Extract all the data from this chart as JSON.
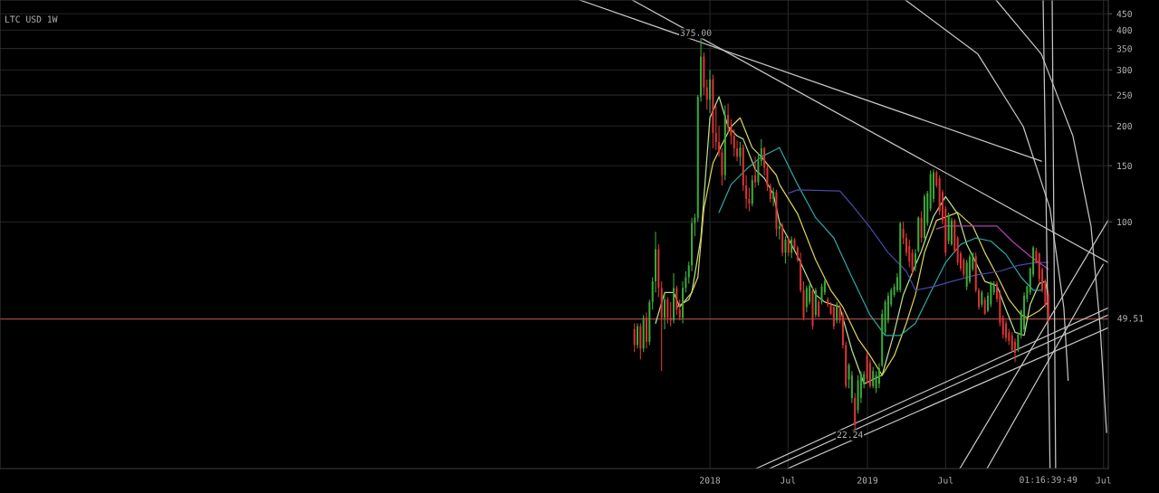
{
  "chart_data": {
    "type": "candlestick",
    "title": "LTC USD 1W",
    "log": true,
    "grid": true,
    "xlim": [
      "2013-07-01",
      "2020-07-12"
    ],
    "ylim": [
      16.8,
      497
    ],
    "xticks": [
      {
        "value": "2018-01-01",
        "label": "2018"
      },
      {
        "value": "2018-07-01",
        "label": "Jul"
      },
      {
        "value": "2019-01-01",
        "label": "2019"
      },
      {
        "value": "2019-07-01",
        "label": "Jul"
      },
      {
        "value": "2020-07-01",
        "label": "Jul"
      }
    ],
    "yticks": [
      100,
      150,
      200,
      250,
      300,
      350,
      400,
      450
    ],
    "x": [
      "2017-07-10",
      "2017-07-17",
      "2017-07-24",
      "2017-07-31",
      "2017-08-07",
      "2017-08-14",
      "2017-08-21",
      "2017-08-28",
      "2017-09-04",
      "2017-09-11",
      "2017-09-18",
      "2017-09-25",
      "2017-10-02",
      "2017-10-09",
      "2017-10-16",
      "2017-10-23",
      "2017-10-30",
      "2017-11-06",
      "2017-11-13",
      "2017-11-20",
      "2017-11-27",
      "2017-12-04",
      "2017-12-11",
      "2017-12-18",
      "2017-12-25",
      "2018-01-01",
      "2018-01-08",
      "2018-01-15",
      "2018-01-22",
      "2018-01-29",
      "2018-02-05",
      "2018-02-12",
      "2018-02-19",
      "2018-02-26",
      "2018-03-05",
      "2018-03-12",
      "2018-03-19",
      "2018-03-26",
      "2018-04-02",
      "2018-04-09",
      "2018-04-16",
      "2018-04-23",
      "2018-04-30",
      "2018-05-07",
      "2018-05-14",
      "2018-05-21",
      "2018-05-28",
      "2018-06-04",
      "2018-06-11",
      "2018-06-18",
      "2018-06-25",
      "2018-07-02",
      "2018-07-09",
      "2018-07-16",
      "2018-07-23",
      "2018-07-30",
      "2018-08-06",
      "2018-08-13",
      "2018-08-20",
      "2018-08-27",
      "2018-09-03",
      "2018-09-10",
      "2018-09-17",
      "2018-09-24",
      "2018-10-01",
      "2018-10-08",
      "2018-10-15",
      "2018-10-22",
      "2018-10-29",
      "2018-11-05",
      "2018-11-12",
      "2018-11-19",
      "2018-11-26",
      "2018-12-03",
      "2018-12-10",
      "2018-12-17",
      "2018-12-24",
      "2018-12-31",
      "2019-01-07",
      "2019-01-14",
      "2019-01-21",
      "2019-01-28",
      "2019-02-04",
      "2019-02-11",
      "2019-02-18",
      "2019-02-25",
      "2019-03-04",
      "2019-03-11",
      "2019-03-18",
      "2019-03-25",
      "2019-04-01",
      "2019-04-08",
      "2019-04-15",
      "2019-04-22",
      "2019-04-29",
      "2019-05-06",
      "2019-05-13",
      "2019-05-20",
      "2019-05-27",
      "2019-06-03",
      "2019-06-10",
      "2019-06-17",
      "2019-06-24",
      "2019-07-01",
      "2019-07-08",
      "2019-07-15",
      "2019-07-22",
      "2019-07-29",
      "2019-08-05",
      "2019-08-12",
      "2019-08-19",
      "2019-08-26",
      "2019-09-02",
      "2019-09-09",
      "2019-09-16",
      "2019-09-23",
      "2019-09-30",
      "2019-10-07",
      "2019-10-14",
      "2019-10-21",
      "2019-10-28",
      "2019-11-04",
      "2019-11-11",
      "2019-11-18",
      "2019-11-25",
      "2019-12-02",
      "2019-12-09",
      "2019-12-16",
      "2019-12-23",
      "2019-12-30",
      "2020-01-06",
      "2020-01-13",
      "2020-01-20",
      "2020-01-27",
      "2020-02-03",
      "2020-02-10",
      "2020-02-17",
      "2020-02-24"
    ],
    "ohlc": [
      [
        46,
        48,
        39,
        41
      ],
      [
        41,
        48,
        40,
        47
      ],
      [
        47,
        48,
        37,
        40
      ],
      [
        40,
        51,
        39,
        50
      ],
      [
        50,
        52,
        40,
        42
      ],
      [
        42,
        57,
        41,
        56
      ],
      [
        56,
        67,
        53,
        65
      ],
      [
        65,
        93,
        60,
        82
      ],
      [
        82,
        85,
        58,
        62
      ],
      [
        62,
        65,
        34,
        50
      ],
      [
        50,
        60,
        46,
        57
      ],
      [
        57,
        58,
        48,
        50
      ],
      [
        50,
        56,
        47,
        49
      ],
      [
        49,
        69,
        48,
        62
      ],
      [
        62,
        63,
        51,
        53
      ],
      [
        53,
        57,
        49,
        50
      ],
      [
        50,
        65,
        48,
        62
      ],
      [
        62,
        70,
        60,
        67
      ],
      [
        67,
        75,
        64,
        73
      ],
      [
        73,
        103,
        70,
        99
      ],
      [
        99,
        106,
        90,
        103
      ],
      [
        103,
        250,
        100,
        247
      ],
      [
        247,
        375,
        238,
        330
      ],
      [
        330,
        340,
        250,
        264
      ],
      [
        264,
        280,
        225,
        242
      ],
      [
        242,
        300,
        220,
        280
      ],
      [
        280,
        290,
        170,
        190
      ],
      [
        190,
        232,
        168,
        178
      ],
      [
        178,
        200,
        160,
        165
      ],
      [
        165,
        170,
        130,
        140
      ],
      [
        140,
        232,
        135,
        217
      ],
      [
        217,
        235,
        190,
        199
      ],
      [
        199,
        210,
        175,
        186
      ],
      [
        186,
        195,
        160,
        170
      ],
      [
        170,
        180,
        155,
        160
      ],
      [
        160,
        178,
        150,
        171
      ],
      [
        171,
        175,
        125,
        130
      ],
      [
        130,
        140,
        110,
        118
      ],
      [
        118,
        128,
        108,
        114
      ],
      [
        114,
        140,
        112,
        135
      ],
      [
        140,
        160,
        128,
        133
      ],
      [
        133,
        165,
        130,
        155
      ],
      [
        155,
        182,
        150,
        170
      ],
      [
        170,
        172,
        140,
        148
      ],
      [
        148,
        150,
        125,
        130
      ],
      [
        130,
        132,
        115,
        118
      ],
      [
        118,
        128,
        112,
        124
      ],
      [
        124,
        126,
        90,
        95
      ],
      [
        95,
        100,
        88,
        97
      ],
      [
        97,
        99,
        78,
        80
      ],
      [
        80,
        90,
        74,
        88
      ],
      [
        88,
        90,
        78,
        80
      ],
      [
        80,
        90,
        77,
        88
      ],
      [
        88,
        89,
        82,
        83
      ],
      [
        83,
        84,
        75,
        76
      ],
      [
        76,
        80,
        60,
        61
      ],
      [
        61,
        65,
        49,
        50
      ],
      [
        54,
        63,
        52,
        62
      ],
      [
        56,
        64,
        55,
        63
      ],
      [
        61,
        62,
        46,
        47
      ],
      [
        51,
        62,
        50,
        61
      ],
      [
        56,
        57,
        50,
        50.5
      ],
      [
        56,
        64,
        55,
        62.6
      ],
      [
        60,
        66,
        59,
        65
      ],
      [
        57,
        58,
        54,
        55
      ],
      [
        55,
        56,
        51,
        51.5
      ],
      [
        54,
        55,
        46,
        47
      ],
      [
        49,
        56,
        48,
        55
      ],
      [
        54,
        55,
        48,
        49
      ],
      [
        51,
        52,
        40,
        41
      ],
      [
        41,
        42,
        30,
        30.5
      ],
      [
        32,
        36,
        30,
        35.5
      ],
      [
        28,
        34,
        27,
        33
      ],
      [
        28,
        29,
        22.24,
        23
      ],
      [
        25.6,
        33,
        25,
        31.8
      ],
      [
        28,
        34,
        27,
        33.3
      ],
      [
        31,
        34,
        30,
        33.3
      ],
      [
        38,
        39,
        31,
        32
      ],
      [
        36,
        37,
        30,
        30.5
      ],
      [
        30.5,
        35,
        30,
        34
      ],
      [
        30,
        34,
        29,
        33
      ],
      [
        31,
        36,
        30,
        34.7
      ],
      [
        35.5,
        53,
        35,
        51.4
      ],
      [
        45,
        57,
        44,
        56
      ],
      [
        49,
        60,
        48,
        58.6
      ],
      [
        55,
        62,
        54,
        61
      ],
      [
        59,
        64,
        58,
        62.6
      ],
      [
        61,
        69,
        60,
        67
      ],
      [
        61,
        100,
        60,
        99
      ],
      [
        95,
        100,
        85,
        89
      ],
      [
        89,
        92,
        78,
        80
      ],
      [
        84,
        88,
        72,
        75
      ],
      [
        80,
        82,
        68,
        70
      ],
      [
        72,
        82,
        70,
        79.6
      ],
      [
        81,
        104,
        80,
        103
      ],
      [
        103,
        108,
        86,
        89
      ],
      [
        89,
        122,
        88,
        120
      ],
      [
        99,
        125,
        97,
        123
      ],
      [
        110,
        145,
        108,
        141
      ],
      [
        118,
        146,
        115,
        143
      ],
      [
        143,
        145,
        128,
        130
      ],
      [
        137,
        140,
        105,
        108
      ],
      [
        124,
        126,
        98,
        101
      ],
      [
        110,
        112,
        78,
        80
      ],
      [
        87,
        107,
        85,
        105
      ],
      [
        85,
        103,
        84,
        101
      ],
      [
        101,
        102,
        80,
        81
      ],
      [
        89,
        90,
        73,
        74.5
      ],
      [
        79.6,
        81,
        70,
        71.3
      ],
      [
        76,
        77,
        67,
        68.3
      ],
      [
        62.6,
        76,
        61,
        74.5
      ],
      [
        65,
        79,
        64,
        77.8
      ],
      [
        71,
        80,
        70,
        79.6
      ],
      [
        78,
        80,
        60,
        61
      ],
      [
        61,
        62,
        53,
        54
      ],
      [
        55,
        61,
        54,
        60
      ],
      [
        57,
        58,
        51,
        51.5
      ],
      [
        52.6,
        60,
        52,
        58.6
      ],
      [
        55,
        65,
        54,
        64
      ],
      [
        60,
        65,
        59,
        64
      ],
      [
        64,
        65,
        56,
        57.3
      ],
      [
        60,
        61,
        47,
        48.2
      ],
      [
        50,
        51,
        43,
        44.2
      ],
      [
        48,
        49,
        42,
        43.2
      ],
      [
        45,
        46,
        41,
        42.3
      ],
      [
        44,
        45,
        39,
        39.6
      ],
      [
        42,
        43,
        36.3,
        38.8
      ],
      [
        39.6,
        45,
        39,
        44.2
      ],
      [
        44,
        53,
        43,
        52.6
      ],
      [
        46,
        60,
        45,
        58.6
      ],
      [
        57.3,
        63,
        56,
        62.6
      ],
      [
        60,
        72,
        59,
        71.3
      ],
      [
        68.3,
        84,
        67,
        83
      ],
      [
        81,
        83,
        74,
        74.5
      ],
      [
        79.6,
        80,
        64,
        66
      ],
      [
        71,
        72,
        60,
        61
      ],
      [
        65,
        66,
        54,
        55
      ],
      [
        59,
        61,
        48,
        49.51
      ]
    ],
    "series": [
      {
        "type": "line",
        "color": "#b9e08c",
        "x": [
          "2017-08-28",
          "2017-09-18",
          "2017-10-09",
          "2017-10-23",
          "2017-11-20",
          "2017-12-11",
          "2018-01-01",
          "2018-01-22",
          "2018-02-12",
          "2018-03-05",
          "2018-03-19",
          "2018-04-16",
          "2018-05-07",
          "2018-05-28",
          "2018-06-11",
          "2018-07-23",
          "2018-09-03",
          "2018-09-24",
          "2018-10-29",
          "2018-11-26",
          "2018-12-24",
          "2019-01-14",
          "2019-02-04",
          "2019-03-04",
          "2019-03-25",
          "2019-04-22",
          "2019-05-06",
          "2019-06-03",
          "2019-07-01",
          "2019-07-29",
          "2019-08-19",
          "2019-09-09",
          "2019-09-30",
          "2019-10-28",
          "2019-11-18",
          "2019-12-09",
          "2019-12-30",
          "2020-01-13",
          "2020-02-03",
          "2020-02-17",
          "2020-02-24"
        ],
        "values": [
          48,
          60,
          60,
          54,
          60,
          89,
          212,
          247,
          199,
          186,
          182,
          146,
          137,
          122,
          100,
          78,
          59,
          56,
          54,
          39.5,
          31,
          32,
          33,
          45,
          59,
          73,
          81,
          104,
          120,
          106,
          85,
          74.5,
          65,
          63,
          53,
          45,
          44,
          55,
          64,
          65,
          59
        ]
      },
      {
        "type": "line",
        "color": "#d8cf5a",
        "x": [
          "2017-10-16",
          "2017-11-13",
          "2017-12-04",
          "2017-12-18",
          "2018-01-08",
          "2018-01-29",
          "2018-02-19",
          "2018-03-12",
          "2018-04-09",
          "2018-04-30",
          "2018-06-04",
          "2018-06-11",
          "2018-07-23",
          "2018-09-03",
          "2018-10-08",
          "2018-11-05",
          "2018-12-10",
          "2019-01-07",
          "2019-02-04",
          "2019-03-04",
          "2019-04-01",
          "2019-04-22",
          "2019-05-13",
          "2019-06-10",
          "2019-07-29",
          "2019-09-02",
          "2019-09-30",
          "2019-10-28",
          "2019-11-25",
          "2019-12-23",
          "2020-01-06",
          "2020-02-03",
          "2020-02-24"
        ],
        "values": [
          54,
          57,
          67,
          110,
          153,
          175,
          199,
          212,
          171,
          160,
          140,
          131,
          106,
          76,
          61,
          54,
          43,
          38,
          33,
          38,
          48,
          59,
          80,
          101,
          107,
          97,
          80,
          68,
          57,
          51,
          50,
          52.6,
          56
        ]
      },
      {
        "type": "line",
        "color": "#2fa3a3",
        "x": [
          "2018-01-22",
          "2018-02-19",
          "2018-03-26",
          "2018-04-30",
          "2018-06-04",
          "2018-06-11",
          "2018-07-23",
          "2018-09-03",
          "2018-10-15",
          "2018-11-26",
          "2019-01-07",
          "2019-02-11",
          "2019-03-18",
          "2019-04-22",
          "2019-05-27",
          "2019-07-01",
          "2019-08-05",
          "2019-09-09",
          "2019-10-14",
          "2019-11-18",
          "2019-12-23",
          "2020-01-20",
          "2020-02-10"
        ],
        "values": [
          107,
          131,
          146,
          160,
          169,
          171,
          131,
          103,
          89,
          67,
          51,
          44,
          44,
          48,
          60,
          74.5,
          85,
          89,
          87,
          79,
          67,
          61,
          61
        ]
      },
      {
        "type": "line",
        "color": "#4848a8",
        "x": [
          "2018-07-02",
          "2018-07-23",
          "2018-10-29",
          "2018-11-26",
          "2019-01-07",
          "2019-02-18",
          "2019-04-01",
          "2019-04-22",
          "2019-06-03",
          "2019-07-15",
          "2019-09-09",
          "2019-11-04",
          "2019-12-16",
          "2020-01-27",
          "2020-02-24"
        ],
        "values": [
          123,
          126,
          125,
          113,
          96,
          80,
          70,
          61,
          62.6,
          65,
          68,
          70,
          73,
          74.5,
          74.5
        ]
      },
      {
        "type": "line",
        "color": "#b040b8",
        "x": [
          "2019-06-10",
          "2019-07-01",
          "2019-10-28",
          "2019-12-02",
          "2020-01-13",
          "2020-02-24"
        ],
        "values": [
          95,
          97,
          97,
          87,
          78,
          71
        ]
      },
      {
        "type": "line",
        "color": "#c4c4c4",
        "x": [
          "2017-07-05",
          "2020-07-12"
        ],
        "values": [
          497,
          74.5
        ]
      },
      {
        "type": "line",
        "color": "#c4c4c4",
        "x": [
          "2017-03-05",
          "2020-02-08"
        ],
        "values": [
          497,
          155
        ]
      },
      {
        "type": "line",
        "color": "#c4c4c4",
        "x": [
          "2018-04-18",
          "2020-07-12"
        ],
        "values": [
          16.8,
          53.7
        ]
      },
      {
        "type": "line",
        "color": "#c4c4c4",
        "x": [
          "2018-05-19",
          "2020-07-12"
        ],
        "values": [
          16.8,
          51.0
        ]
      },
      {
        "type": "line",
        "color": "#c4c4c4",
        "x": [
          "2018-06-30",
          "2020-07-12"
        ],
        "values": [
          16.8,
          46.5
        ]
      },
      {
        "type": "line",
        "color": "#c4c4c4",
        "x": [
          "2019-08-03",
          "2020-07-12"
        ],
        "values": [
          16.8,
          101.3
        ]
      },
      {
        "type": "line",
        "color": "#c4c4c4",
        "x": [
          "2019-10-05",
          "2020-06-30"
        ],
        "values": [
          16.8,
          73.5
        ]
      },
      {
        "type": "line",
        "color": "#c4c4c4",
        "x": [
          "2020-02-12",
          "2020-02-28"
        ],
        "values": [
          497,
          16.8
        ]
      },
      {
        "type": "line",
        "color": "#c4c4c4",
        "x": [
          "2020-03-04",
          "2020-03-12"
        ],
        "values": [
          497,
          16.8
        ]
      },
      {
        "type": "line",
        "color": "#c4c4c4",
        "x": [
          "2019-10-26",
          "2020-02-08",
          "2020-04-21",
          "2020-06-02",
          "2020-06-23",
          "2020-07-08"
        ],
        "values": [
          497,
          336,
          186,
          96.8,
          47.1,
          21.8
        ]
      },
      {
        "type": "line",
        "color": "#c4c4c4",
        "x": [
          "2019-03-30",
          "2019-09-14",
          "2019-12-28",
          "2020-02-28",
          "2020-03-31",
          "2020-04-10"
        ],
        "values": [
          497,
          336,
          199,
          110,
          53.7,
          31.8
        ]
      }
    ],
    "ref_lines": [
      {
        "axis": "y",
        "value": 49.51,
        "label": "49.51",
        "color": "#a04848"
      }
    ],
    "annotations": [
      {
        "text": "375.00",
        "x": "2017-12-11",
        "y": 375
      },
      {
        "text": "22.24",
        "x": "2018-12-03",
        "y": 22.24
      },
      "01:16:39:49"
    ]
  }
}
